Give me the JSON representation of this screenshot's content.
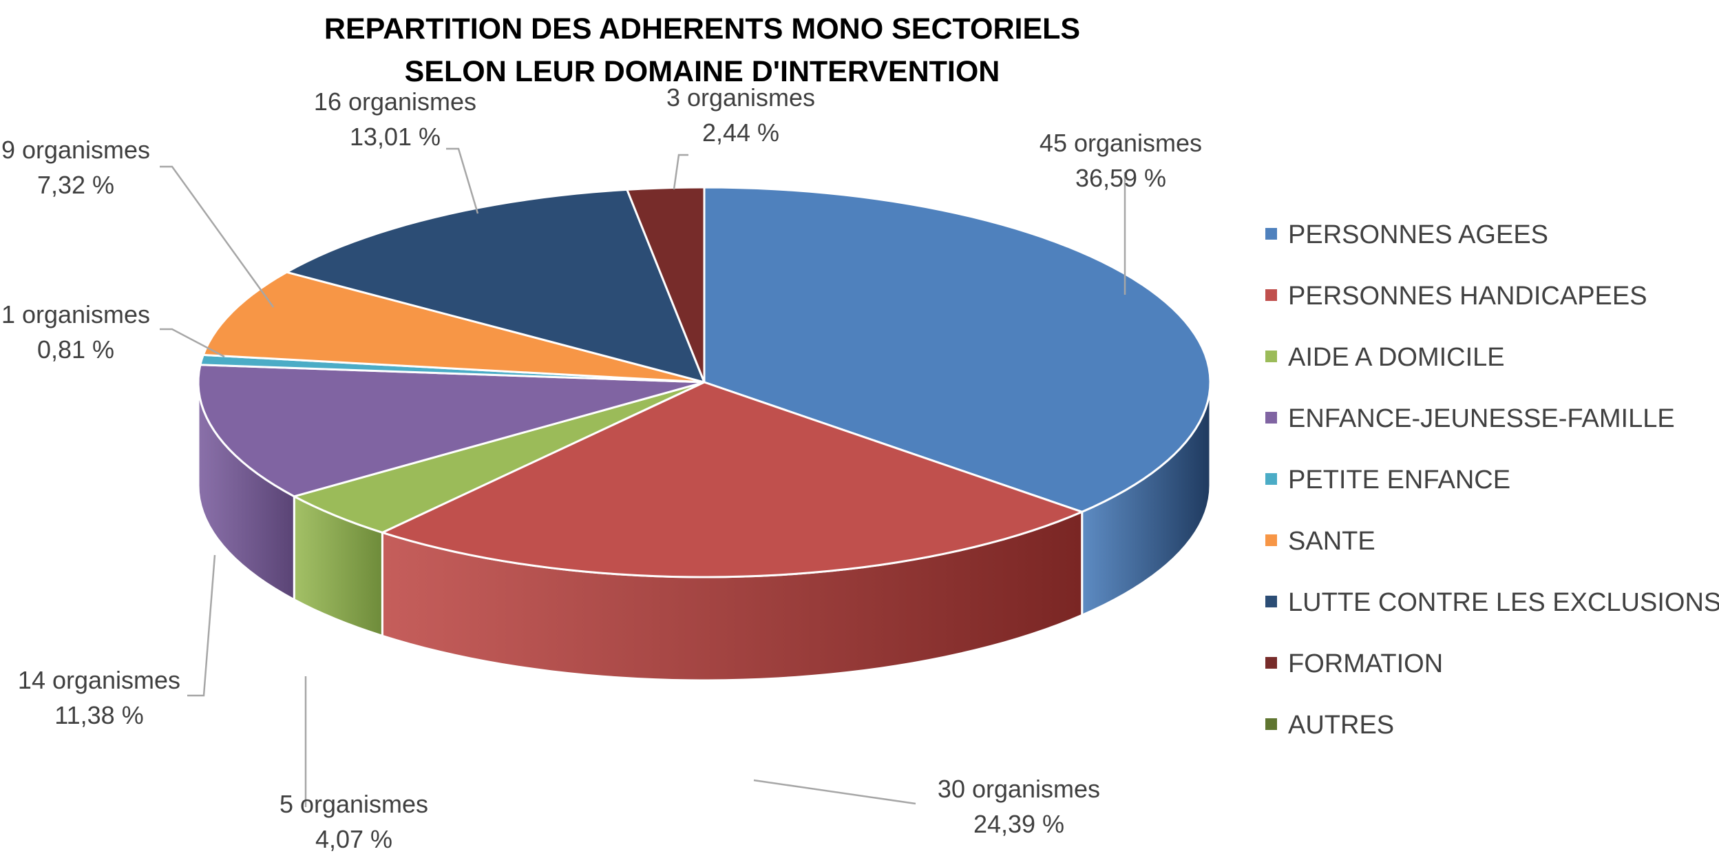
{
  "chart_data": {
    "type": "pie",
    "style": "3d",
    "title_lines": [
      "REPARTITION DES ADHERENTS MONO SECTORIELS",
      "SELON LEUR DOMAINE D'INTERVENTION"
    ],
    "legend_position": "right",
    "slices": [
      {
        "name": "PERSONNES AGEES",
        "count": 45,
        "count_label": "45 organismes",
        "percent": 36.59,
        "percent_label": "36,59 %",
        "color": "#4F81BD",
        "side_color": "#1F3A5F"
      },
      {
        "name": "PERSONNES HANDICAPEES",
        "count": 30,
        "count_label": "30 organismes",
        "percent": 24.39,
        "percent_label": "24,39 %",
        "color": "#C0504D",
        "side_color": "#7A2624"
      },
      {
        "name": "AIDE A DOMICILE",
        "count": 5,
        "count_label": "5 organismes",
        "percent": 4.07,
        "percent_label": "4,07 %",
        "color": "#9BBB59",
        "side_color": "#6E8B3A"
      },
      {
        "name": "ENFANCE-JEUNESSE-FAMILLE",
        "count": 14,
        "count_label": "14 organismes",
        "percent": 11.38,
        "percent_label": "11,38 %",
        "color": "#8064A2",
        "side_color": "#5A4475"
      },
      {
        "name": "PETITE ENFANCE",
        "count": 1,
        "count_label": "1 organismes",
        "percent": 0.81,
        "percent_label": "0,81 %",
        "color": "#4BACC6",
        "side_color": "#2E7A8E"
      },
      {
        "name": "SANTE",
        "count": 9,
        "count_label": "9 organismes",
        "percent": 7.32,
        "percent_label": "7,32 %",
        "color": "#F79646",
        "side_color": "#B5621E"
      },
      {
        "name": "LUTTE CONTRE LES EXCLUSIONS",
        "count": 16,
        "count_label": "16 organismes",
        "percent": 13.01,
        "percent_label": "13,01 %",
        "color": "#2C4D75",
        "side_color": "#1A2F48"
      },
      {
        "name": "FORMATION",
        "count": 3,
        "count_label": "3 organismes",
        "percent": 2.44,
        "percent_label": "2,44 %",
        "color": "#772C2A",
        "side_color": "#4A1A19"
      },
      {
        "name": "AUTRES",
        "count": 0,
        "count_label": "",
        "percent": 0,
        "percent_label": "",
        "color": "#5F7530",
        "side_color": "#435320"
      }
    ]
  }
}
